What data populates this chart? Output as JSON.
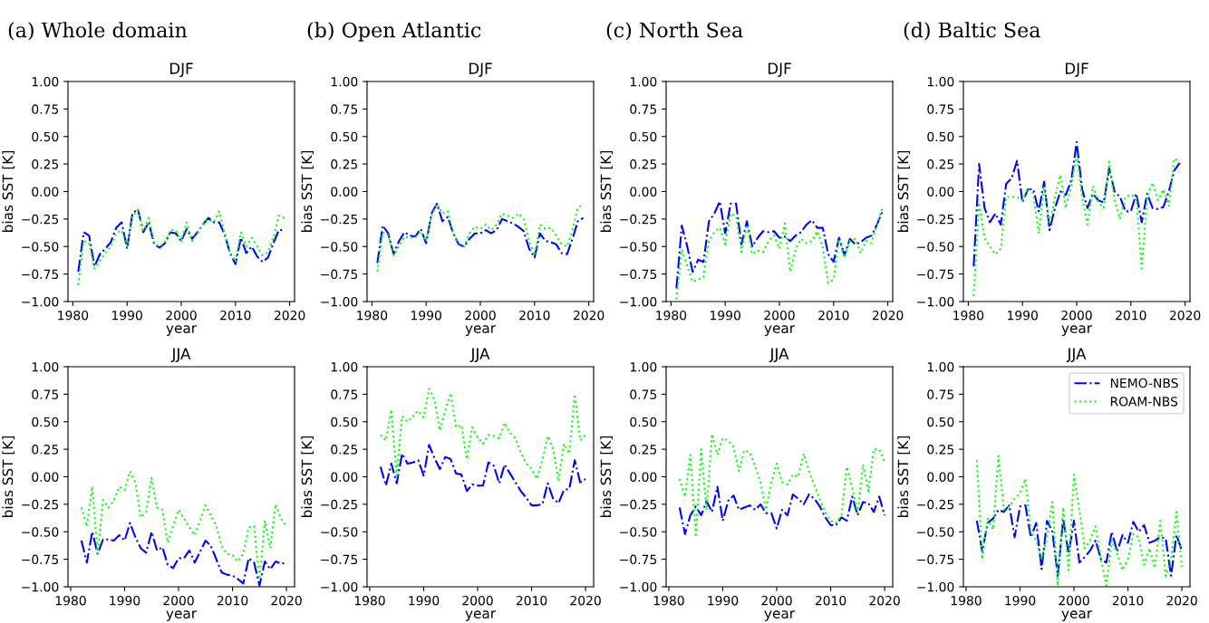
{
  "chart_data": [
    {
      "type": "line",
      "title": "DJF",
      "annotations": [
        "(a) Whole domain"
      ],
      "xlabel": "year",
      "ylabel": "bias SST [K]",
      "x": [
        1981,
        1982,
        1983,
        1984,
        1985,
        1986,
        1987,
        1988,
        1989,
        1990,
        1991,
        1992,
        1993,
        1994,
        1995,
        1996,
        1997,
        1998,
        1999,
        2000,
        2001,
        2002,
        2003,
        2004,
        2005,
        2006,
        2007,
        2008,
        2009,
        2010,
        2011,
        2012,
        2013,
        2014,
        2015,
        2016,
        2017,
        2018,
        2019
      ],
      "xlim": [
        1979.1,
        2020.9
      ],
      "xticks": [
        1980,
        1990,
        2000,
        2010,
        2020
      ],
      "ylim": [
        -1,
        1
      ],
      "yticks": [
        {
          "value": -1,
          "label": "−1.00"
        },
        {
          "value": -0.75,
          "label": "−0.75"
        },
        {
          "value": -0.5,
          "label": "−0.50"
        },
        {
          "value": -0.25,
          "label": "−0.25"
        },
        {
          "value": 0,
          "label": "0.00"
        },
        {
          "value": 0.25,
          "label": "0.25"
        },
        {
          "value": 0.5,
          "label": "0.50"
        },
        {
          "value": 0.75,
          "label": "0.75"
        },
        {
          "value": 1,
          "label": "1.00"
        }
      ],
      "series": [
        {
          "color": "#0000ff",
          "line_style": "dashdot",
          "values": [
            -0.73,
            -0.37,
            -0.4,
            -0.68,
            -0.57,
            -0.52,
            -0.46,
            -0.33,
            -0.28,
            -0.52,
            -0.2,
            -0.16,
            -0.37,
            -0.28,
            -0.48,
            -0.51,
            -0.47,
            -0.37,
            -0.38,
            -0.45,
            -0.34,
            -0.43,
            -0.37,
            -0.3,
            -0.24,
            -0.28,
            -0.28,
            -0.39,
            -0.56,
            -0.66,
            -0.42,
            -0.56,
            -0.5,
            -0.59,
            -0.64,
            -0.6,
            -0.47,
            -0.35,
            -0.35
          ]
        },
        {
          "color": "#00ff00",
          "line_style": "dotted",
          "values": [
            -0.85,
            -0.45,
            -0.47,
            -0.7,
            -0.63,
            -0.56,
            -0.5,
            -0.38,
            -0.35,
            -0.5,
            -0.22,
            -0.17,
            -0.36,
            -0.24,
            -0.47,
            -0.5,
            -0.46,
            -0.35,
            -0.35,
            -0.45,
            -0.28,
            -0.45,
            -0.38,
            -0.3,
            -0.25,
            -0.28,
            -0.18,
            -0.38,
            -0.55,
            -0.64,
            -0.37,
            -0.5,
            -0.42,
            -0.5,
            -0.58,
            -0.55,
            -0.42,
            -0.22,
            -0.24
          ]
        }
      ]
    },
    {
      "type": "line",
      "title": "DJF",
      "annotations": [
        "(b) Open Atlantic"
      ],
      "xlabel": "year",
      "ylabel": "bias SST [K]",
      "x": [
        1981,
        1982,
        1983,
        1984,
        1985,
        1986,
        1987,
        1988,
        1989,
        1990,
        1991,
        1992,
        1993,
        1994,
        1995,
        1996,
        1997,
        1998,
        1999,
        2000,
        2001,
        2002,
        2003,
        2004,
        2005,
        2006,
        2007,
        2008,
        2009,
        2010,
        2011,
        2012,
        2013,
        2014,
        2015,
        2016,
        2017,
        2018,
        2019
      ],
      "xlim": [
        1979.1,
        2020.9
      ],
      "xticks": [
        1980,
        1990,
        2000,
        2010,
        2020
      ],
      "ylim": [
        -1,
        1
      ],
      "yticks": [
        {
          "value": -1,
          "label": "−1.00"
        },
        {
          "value": -0.75,
          "label": "−0.75"
        },
        {
          "value": -0.5,
          "label": "−0.50"
        },
        {
          "value": -0.25,
          "label": "−0.25"
        },
        {
          "value": 0,
          "label": "0.00"
        },
        {
          "value": 0.25,
          "label": "0.25"
        },
        {
          "value": 0.5,
          "label": "0.50"
        },
        {
          "value": 0.75,
          "label": "0.75"
        },
        {
          "value": 1,
          "label": "1.00"
        }
      ],
      "series": [
        {
          "color": "#0000ff",
          "line_style": "dashdot",
          "values": [
            -0.65,
            -0.31,
            -0.38,
            -0.57,
            -0.45,
            -0.37,
            -0.4,
            -0.41,
            -0.34,
            -0.47,
            -0.2,
            -0.11,
            -0.27,
            -0.23,
            -0.38,
            -0.48,
            -0.5,
            -0.43,
            -0.38,
            -0.38,
            -0.35,
            -0.38,
            -0.35,
            -0.25,
            -0.27,
            -0.29,
            -0.32,
            -0.36,
            -0.52,
            -0.6,
            -0.38,
            -0.45,
            -0.46,
            -0.48,
            -0.56,
            -0.57,
            -0.43,
            -0.27,
            -0.24
          ]
        },
        {
          "color": "#00ff00",
          "line_style": "dotted",
          "values": [
            -0.73,
            -0.37,
            -0.4,
            -0.58,
            -0.5,
            -0.41,
            -0.42,
            -0.42,
            -0.36,
            -0.45,
            -0.22,
            -0.11,
            -0.2,
            -0.18,
            -0.38,
            -0.47,
            -0.5,
            -0.38,
            -0.32,
            -0.34,
            -0.3,
            -0.35,
            -0.3,
            -0.2,
            -0.22,
            -0.24,
            -0.2,
            -0.25,
            -0.45,
            -0.58,
            -0.3,
            -0.34,
            -0.33,
            -0.4,
            -0.48,
            -0.5,
            -0.35,
            -0.15,
            -0.11
          ]
        }
      ]
    },
    {
      "type": "line",
      "title": "DJF",
      "annotations": [
        "(c) North Sea"
      ],
      "xlabel": "year",
      "ylabel": "bias SST [K]",
      "x": [
        1981,
        1982,
        1983,
        1984,
        1985,
        1986,
        1987,
        1988,
        1989,
        1990,
        1991,
        1992,
        1993,
        1994,
        1995,
        1996,
        1997,
        1998,
        1999,
        2000,
        2001,
        2002,
        2003,
        2004,
        2005,
        2006,
        2007,
        2008,
        2009,
        2010,
        2011,
        2012,
        2013,
        2014,
        2015,
        2016,
        2017,
        2018,
        2019
      ],
      "xlim": [
        1979.1,
        2020.9
      ],
      "xticks": [
        1980,
        1990,
        2000,
        2010,
        2020
      ],
      "ylim": [
        -1,
        1
      ],
      "yticks": [
        {
          "value": -1,
          "label": "−1.00"
        },
        {
          "value": -0.75,
          "label": "−0.75"
        },
        {
          "value": -0.5,
          "label": "−0.50"
        },
        {
          "value": -0.25,
          "label": "−0.25"
        },
        {
          "value": 0,
          "label": "0.00"
        },
        {
          "value": 0.25,
          "label": "0.25"
        },
        {
          "value": 0.5,
          "label": "0.50"
        },
        {
          "value": 0.75,
          "label": "0.75"
        },
        {
          "value": 1,
          "label": "1.00"
        }
      ],
      "series": [
        {
          "color": "#0000ff",
          "line_style": "dashdot",
          "values": [
            -0.88,
            -0.31,
            -0.5,
            -0.73,
            -0.62,
            -0.64,
            -0.27,
            -0.2,
            -0.09,
            -0.38,
            -0.11,
            -0.11,
            -0.48,
            -0.27,
            -0.5,
            -0.42,
            -0.36,
            -0.37,
            -0.36,
            -0.42,
            -0.41,
            -0.45,
            -0.4,
            -0.37,
            -0.3,
            -0.26,
            -0.33,
            -0.33,
            -0.57,
            -0.64,
            -0.42,
            -0.58,
            -0.43,
            -0.48,
            -0.46,
            -0.42,
            -0.4,
            -0.3,
            -0.18
          ]
        },
        {
          "color": "#00ff00",
          "line_style": "dotted",
          "values": [
            -0.98,
            -0.53,
            -0.68,
            -0.82,
            -0.8,
            -0.78,
            -0.45,
            -0.37,
            -0.33,
            -0.48,
            -0.2,
            -0.22,
            -0.55,
            -0.3,
            -0.57,
            -0.54,
            -0.55,
            -0.45,
            -0.4,
            -0.52,
            -0.29,
            -0.73,
            -0.52,
            -0.43,
            -0.47,
            -0.45,
            -0.36,
            -0.5,
            -0.83,
            -0.8,
            -0.43,
            -0.6,
            -0.45,
            -0.43,
            -0.56,
            -0.45,
            -0.47,
            -0.3,
            -0.15
          ]
        }
      ]
    },
    {
      "type": "line",
      "title": "DJF",
      "annotations": [
        "(d) Baltic Sea"
      ],
      "xlabel": "year",
      "ylabel": "bias SST [K]",
      "x": [
        1981,
        1982,
        1983,
        1984,
        1985,
        1986,
        1987,
        1988,
        1989,
        1990,
        1991,
        1992,
        1993,
        1994,
        1995,
        1996,
        1997,
        1998,
        1999,
        2000,
        2001,
        2002,
        2003,
        2004,
        2005,
        2006,
        2007,
        2008,
        2009,
        2010,
        2011,
        2012,
        2013,
        2014,
        2015,
        2016,
        2017,
        2018,
        2019
      ],
      "xlim": [
        1979.1,
        2020.9
      ],
      "xticks": [
        1980,
        1990,
        2000,
        2010,
        2020
      ],
      "ylim": [
        -1,
        1
      ],
      "yticks": [
        {
          "value": -1,
          "label": "−1.00"
        },
        {
          "value": -0.75,
          "label": "−0.75"
        },
        {
          "value": -0.5,
          "label": "−0.50"
        },
        {
          "value": -0.25,
          "label": "−0.25"
        },
        {
          "value": 0,
          "label": "0.00"
        },
        {
          "value": 0.25,
          "label": "0.25"
        },
        {
          "value": 0.5,
          "label": "0.50"
        },
        {
          "value": 0.75,
          "label": "0.75"
        },
        {
          "value": 1,
          "label": "1.00"
        }
      ],
      "series": [
        {
          "color": "#0000ff",
          "line_style": "dashdot",
          "values": [
            -0.68,
            0.25,
            -0.15,
            -0.28,
            -0.2,
            -0.3,
            0.07,
            0.12,
            0.28,
            -0.1,
            0.02,
            0.02,
            -0.18,
            0.09,
            -0.35,
            -0.15,
            0.0,
            -0.03,
            0.1,
            0.45,
            0.02,
            -0.15,
            -0.02,
            -0.08,
            -0.1,
            0.21,
            0.0,
            -0.05,
            -0.18,
            -0.18,
            -0.02,
            -0.28,
            -0.02,
            -0.15,
            -0.16,
            -0.14,
            0.0,
            0.19,
            0.26
          ]
        },
        {
          "color": "#00ff00",
          "line_style": "dotted",
          "values": [
            -0.95,
            -0.1,
            -0.42,
            -0.5,
            -0.57,
            -0.52,
            -0.05,
            -0.05,
            -0.05,
            -0.08,
            0.03,
            -0.02,
            -0.38,
            0.05,
            -0.3,
            -0.05,
            0.15,
            -0.15,
            0.05,
            0.35,
            -0.05,
            -0.3,
            0.05,
            -0.1,
            -0.15,
            0.27,
            -0.08,
            -0.25,
            -0.05,
            -0.03,
            -0.05,
            -0.7,
            -0.05,
            0.08,
            -0.08,
            0.02,
            -0.13,
            0.3,
            0.27
          ]
        }
      ]
    },
    {
      "type": "line",
      "title": "JJA",
      "xlabel": "year",
      "ylabel": "bias SST [K]",
      "x": [
        1982,
        1983,
        1984,
        1985,
        1986,
        1987,
        1988,
        1989,
        1990,
        1991,
        1992,
        1993,
        1994,
        1995,
        1996,
        1997,
        1998,
        1999,
        2000,
        2001,
        2002,
        2003,
        2004,
        2005,
        2006,
        2007,
        2008,
        2009,
        2010,
        2011,
        2012,
        2013,
        2014,
        2015,
        2016,
        2017,
        2018,
        2019,
        2020
      ],
      "xlim": [
        1979.5,
        2021.5
      ],
      "xticks": [
        1980,
        1990,
        2000,
        2010,
        2020
      ],
      "ylim": [
        -1,
        1
      ],
      "yticks": [
        {
          "value": -1,
          "label": "−1.00"
        },
        {
          "value": -0.75,
          "label": "−0.75"
        },
        {
          "value": -0.5,
          "label": "−0.50"
        },
        {
          "value": -0.25,
          "label": "−0.25"
        },
        {
          "value": 0,
          "label": "0.00"
        },
        {
          "value": 0.25,
          "label": "0.25"
        },
        {
          "value": 0.5,
          "label": "0.50"
        },
        {
          "value": 0.75,
          "label": "0.75"
        },
        {
          "value": 1,
          "label": "1.00"
        }
      ],
      "series": [
        {
          "color": "#0000ff",
          "line_style": "dashdot",
          "values": [
            -0.58,
            -0.78,
            -0.5,
            -0.7,
            -0.57,
            -0.57,
            -0.58,
            -0.53,
            -0.58,
            -0.42,
            -0.55,
            -0.65,
            -0.69,
            -0.5,
            -0.67,
            -0.64,
            -0.8,
            -0.83,
            -0.74,
            -0.74,
            -0.67,
            -0.78,
            -0.68,
            -0.58,
            -0.63,
            -0.75,
            -0.87,
            -0.89,
            -0.9,
            -0.93,
            -0.97,
            -0.74,
            -0.78,
            -0.99,
            -0.77,
            -0.84,
            -0.77,
            -0.79,
            -0.78
          ]
        },
        {
          "color": "#00ff00",
          "line_style": "dotted",
          "values": [
            -0.28,
            -0.45,
            -0.09,
            -0.7,
            -0.21,
            -0.28,
            -0.22,
            -0.09,
            -0.12,
            0.05,
            -0.05,
            -0.37,
            -0.32,
            -0.01,
            -0.28,
            -0.3,
            -0.6,
            -0.45,
            -0.3,
            -0.38,
            -0.46,
            -0.53,
            -0.4,
            -0.26,
            -0.35,
            -0.45,
            -0.63,
            -0.7,
            -0.71,
            -0.77,
            -0.7,
            -0.46,
            -0.45,
            -0.93,
            -0.4,
            -0.65,
            -0.25,
            -0.38,
            -0.45
          ]
        }
      ]
    },
    {
      "type": "line",
      "title": "JJA",
      "xlabel": "year",
      "ylabel": "bias SST [K]",
      "x": [
        1982,
        1983,
        1984,
        1985,
        1986,
        1987,
        1988,
        1989,
        1990,
        1991,
        1992,
        1993,
        1994,
        1995,
        1996,
        1997,
        1998,
        1999,
        2000,
        2001,
        2002,
        2003,
        2004,
        2005,
        2006,
        2007,
        2008,
        2009,
        2010,
        2011,
        2012,
        2013,
        2014,
        2015,
        2016,
        2017,
        2018,
        2019,
        2020
      ],
      "xlim": [
        1979.5,
        2021.5
      ],
      "xticks": [
        1980,
        1990,
        2000,
        2010,
        2020
      ],
      "ylim": [
        -1,
        1
      ],
      "yticks": [
        {
          "value": -1,
          "label": "−1.00"
        },
        {
          "value": -0.75,
          "label": "−0.75"
        },
        {
          "value": -0.5,
          "label": "−0.50"
        },
        {
          "value": -0.25,
          "label": "−0.25"
        },
        {
          "value": 0,
          "label": "0.00"
        },
        {
          "value": 0.25,
          "label": "0.25"
        },
        {
          "value": 0.5,
          "label": "0.50"
        },
        {
          "value": 0.75,
          "label": "0.75"
        },
        {
          "value": 1,
          "label": "1.00"
        }
      ],
      "series": [
        {
          "color": "#0000ff",
          "line_style": "dashdot",
          "values": [
            0.09,
            -0.08,
            0.12,
            -0.06,
            0.21,
            0.12,
            0.13,
            0.15,
            0.01,
            0.29,
            0.17,
            0.07,
            0.18,
            0.16,
            0.03,
            0.02,
            -0.13,
            -0.07,
            -0.08,
            -0.08,
            0.13,
            0.1,
            -0.06,
            0.11,
            0.03,
            -0.05,
            -0.13,
            -0.19,
            -0.26,
            -0.26,
            -0.25,
            -0.06,
            -0.2,
            -0.24,
            -0.12,
            -0.11,
            0.15,
            -0.05,
            -0.02
          ]
        },
        {
          "color": "#00ff00",
          "line_style": "dotted",
          "values": [
            0.38,
            0.33,
            0.61,
            0.01,
            0.55,
            0.5,
            0.55,
            0.6,
            0.54,
            0.8,
            0.7,
            0.42,
            0.6,
            0.76,
            0.45,
            0.47,
            0.16,
            0.45,
            0.36,
            0.3,
            0.38,
            0.37,
            0.35,
            0.49,
            0.4,
            0.35,
            0.22,
            0.12,
            0.07,
            -0.02,
            0.15,
            0.37,
            0.25,
            -0.04,
            0.3,
            0.21,
            0.75,
            0.33,
            0.38
          ]
        }
      ]
    },
    {
      "type": "line",
      "title": "JJA",
      "xlabel": "year",
      "ylabel": "bias SST [K]",
      "x": [
        1982,
        1983,
        1984,
        1985,
        1986,
        1987,
        1988,
        1989,
        1990,
        1991,
        1992,
        1993,
        1994,
        1995,
        1996,
        1997,
        1998,
        1999,
        2000,
        2001,
        2002,
        2003,
        2004,
        2005,
        2006,
        2007,
        2008,
        2009,
        2010,
        2011,
        2012,
        2013,
        2014,
        2015,
        2016,
        2017,
        2018,
        2019,
        2020
      ],
      "xlim": [
        1979.5,
        2021.5
      ],
      "xticks": [
        1980,
        1990,
        2000,
        2010,
        2020
      ],
      "ylim": [
        -1,
        1
      ],
      "yticks": [
        {
          "value": -1,
          "label": "−1.00"
        },
        {
          "value": -0.75,
          "label": "−0.75"
        },
        {
          "value": -0.5,
          "label": "−0.50"
        },
        {
          "value": -0.25,
          "label": "−0.25"
        },
        {
          "value": 0,
          "label": "0.00"
        },
        {
          "value": 0.25,
          "label": "0.25"
        },
        {
          "value": 0.5,
          "label": "0.50"
        },
        {
          "value": 0.75,
          "label": "0.75"
        },
        {
          "value": 1,
          "label": "1.00"
        }
      ],
      "series": [
        {
          "color": "#0000ff",
          "line_style": "dashdot",
          "values": [
            -0.28,
            -0.52,
            -0.35,
            -0.27,
            -0.35,
            -0.22,
            -0.32,
            -0.09,
            -0.4,
            -0.22,
            -0.17,
            -0.3,
            -0.28,
            -0.26,
            -0.3,
            -0.25,
            -0.33,
            -0.33,
            -0.47,
            -0.3,
            -0.35,
            -0.16,
            -0.2,
            -0.25,
            -0.16,
            -0.2,
            -0.27,
            -0.37,
            -0.44,
            -0.44,
            -0.37,
            -0.4,
            -0.18,
            -0.35,
            -0.23,
            -0.24,
            -0.32,
            -0.18,
            -0.35
          ]
        },
        {
          "color": "#00ff00",
          "line_style": "dotted",
          "values": [
            -0.02,
            -0.18,
            0.2,
            -0.55,
            0.25,
            -0.3,
            0.39,
            0.2,
            0.35,
            0.33,
            0.27,
            0.05,
            0.24,
            0.22,
            0.1,
            -0.05,
            -0.3,
            -0.05,
            0.12,
            -0.05,
            -0.07,
            0.02,
            0.0,
            0.21,
            0.05,
            -0.08,
            -0.2,
            -0.32,
            -0.4,
            -0.42,
            -0.35,
            0.09,
            -0.1,
            -0.33,
            0.11,
            -0.13,
            0.25,
            0.25,
            0.14
          ]
        }
      ]
    },
    {
      "type": "line",
      "title": "JJA",
      "xlabel": "year",
      "ylabel": "bias SST [K]",
      "legend": "top right",
      "x": [
        1982,
        1983,
        1984,
        1985,
        1986,
        1987,
        1988,
        1989,
        1990,
        1991,
        1992,
        1993,
        1994,
        1995,
        1996,
        1997,
        1998,
        1999,
        2000,
        2001,
        2002,
        2003,
        2004,
        2005,
        2006,
        2007,
        2008,
        2009,
        2010,
        2011,
        2012,
        2013,
        2014,
        2015,
        2016,
        2017,
        2018,
        2019,
        2020
      ],
      "xlim": [
        1979.5,
        2021.5
      ],
      "xticks": [
        1980,
        1990,
        2000,
        2010,
        2020
      ],
      "ylim": [
        -1,
        1
      ],
      "yticks": [
        {
          "value": -1,
          "label": "−1.00"
        },
        {
          "value": -0.75,
          "label": "−0.75"
        },
        {
          "value": -0.5,
          "label": "−0.50"
        },
        {
          "value": -0.25,
          "label": "−0.25"
        },
        {
          "value": 0,
          "label": "0.00"
        },
        {
          "value": 0.25,
          "label": "0.25"
        },
        {
          "value": 0.5,
          "label": "0.50"
        },
        {
          "value": 0.75,
          "label": "0.75"
        },
        {
          "value": 1,
          "label": "1.00"
        }
      ],
      "series": [
        {
          "name": "NEMO-NBS",
          "color": "#0000ff",
          "line_style": "dashdot",
          "values": [
            -0.4,
            -0.68,
            -0.42,
            -0.38,
            -0.3,
            -0.32,
            -0.26,
            -0.55,
            -0.27,
            -0.26,
            -0.55,
            -0.42,
            -0.84,
            -0.4,
            -0.5,
            -0.9,
            -0.38,
            -0.7,
            -0.4,
            -0.78,
            -0.73,
            -0.67,
            -0.58,
            -0.75,
            -0.78,
            -0.5,
            -0.68,
            -0.53,
            -0.6,
            -0.41,
            -0.5,
            -0.44,
            -0.6,
            -0.58,
            -0.55,
            -0.56,
            -0.9,
            -0.53,
            -0.67
          ]
        },
        {
          "name": "ROAM-NBS",
          "color": "#00ff00",
          "line_style": "dotted",
          "values": [
            0.15,
            -0.75,
            -0.38,
            -0.48,
            0.19,
            -0.3,
            -0.27,
            -0.2,
            -0.15,
            -0.02,
            -0.5,
            -0.58,
            -0.75,
            -0.55,
            -0.23,
            -0.99,
            -0.28,
            -0.85,
            0.02,
            -0.3,
            -0.65,
            -0.58,
            -0.45,
            -0.75,
            -0.99,
            -0.58,
            -0.7,
            -0.85,
            -0.75,
            -0.52,
            -0.55,
            -0.8,
            -0.65,
            -0.83,
            -0.4,
            -0.9,
            -0.75,
            -0.32,
            -0.82
          ]
        }
      ]
    }
  ]
}
